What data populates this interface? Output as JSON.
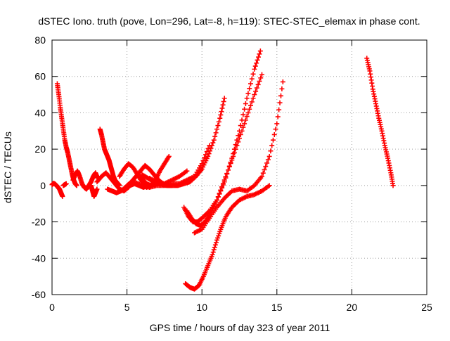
{
  "chart_data": {
    "type": "scatter",
    "title": "dSTEC Iono. truth (pove, Lon=296, Lat=-8, h=119): STEC-STEC_elemax in phase cont.",
    "xlabel": "GPS time / hours of day 323 of year 2011",
    "ylabel": "dSTEC  / TECUs",
    "xlim": [
      0,
      25
    ],
    "ylim": [
      -60,
      80
    ],
    "x_ticks": [
      0,
      5,
      10,
      15,
      20,
      25
    ],
    "y_ticks": [
      -60,
      -40,
      -20,
      0,
      20,
      40,
      60,
      80
    ],
    "grid": true,
    "marker": "+",
    "color": "#ff0000",
    "series": [
      {
        "x": [
          0.0,
          0.1,
          0.2,
          0.3,
          0.4,
          0.5,
          0.6,
          0.7
        ],
        "y": [
          0.5,
          1.2,
          0.8,
          0.0,
          -1.0,
          -2.0,
          -4.0,
          -6.0
        ]
      },
      {
        "x": [
          0.75,
          0.85,
          0.95
        ],
        "y": [
          0.0,
          0.5,
          1.0
        ]
      },
      {
        "x": [
          0.35,
          0.45,
          0.55,
          0.65,
          0.75,
          0.85,
          0.95,
          1.05,
          1.15,
          1.25,
          1.35,
          1.45,
          1.55,
          1.65
        ],
        "y": [
          56,
          50,
          43,
          37,
          31,
          25,
          21,
          18,
          14,
          10,
          6,
          3,
          1,
          0
        ]
      },
      {
        "x": [
          1.4,
          1.55,
          1.7,
          1.85,
          2.0,
          2.15,
          2.3,
          2.45,
          2.6,
          2.75,
          2.9,
          3.05
        ],
        "y": [
          3,
          6,
          8,
          5,
          1,
          -1,
          -2,
          0,
          2,
          5,
          7,
          4
        ]
      },
      {
        "x": [
          2.6,
          2.7,
          2.8,
          2.9,
          3.0
        ],
        "y": [
          0,
          -3,
          -6,
          -4,
          -2
        ]
      },
      {
        "x": [
          3.2,
          3.3,
          3.4,
          3.5,
          3.6,
          3.7,
          3.8,
          3.9,
          4.0,
          4.1,
          4.2,
          4.3,
          4.4,
          4.5
        ],
        "y": [
          31,
          28,
          24,
          20,
          18,
          16,
          14,
          11,
          8,
          5,
          3,
          2,
          1,
          0
        ]
      },
      {
        "x": [
          3.0,
          3.3,
          3.6,
          3.9,
          4.2,
          4.5,
          4.8,
          5.1,
          5.4,
          5.7,
          6.0,
          6.3,
          6.6,
          7.0
        ],
        "y": [
          2,
          5,
          7,
          4,
          1,
          -2,
          -3,
          -1,
          3,
          6,
          4,
          1,
          0,
          1
        ]
      },
      {
        "x": [
          4.5,
          4.8,
          5.1,
          5.4,
          5.7,
          6.0,
          6.3,
          6.6,
          6.9,
          7.2,
          7.5,
          7.8
        ],
        "y": [
          5,
          9,
          12,
          10,
          6,
          2,
          -1,
          0,
          3,
          8,
          12,
          16
        ]
      },
      {
        "x": [
          5.0,
          5.3,
          5.6,
          5.9,
          6.2,
          6.5,
          6.8,
          7.1,
          7.4,
          7.7,
          8.0
        ],
        "y": [
          0,
          2,
          5,
          8,
          11,
          9,
          6,
          3,
          1,
          0,
          0
        ]
      },
      {
        "x": [
          3.7,
          4.0,
          4.3,
          4.6,
          4.9,
          5.2,
          5.5,
          5.8,
          6.1,
          6.4
        ],
        "y": [
          -2,
          -3,
          -4,
          -3,
          -1,
          0,
          1,
          0,
          -1,
          0
        ]
      },
      {
        "x": [
          6.0,
          6.4,
          6.8,
          7.2,
          7.6,
          8.0,
          8.4,
          8.8,
          9.2,
          9.6,
          10.0,
          10.4,
          10.8,
          11.2,
          11.5
        ],
        "y": [
          6,
          4,
          2,
          1,
          0,
          0,
          0,
          1,
          2,
          5,
          9,
          16,
          25,
          37,
          48
        ]
      },
      {
        "x": [
          5.5,
          6.0,
          6.5,
          7.0,
          7.5,
          8.0,
          8.5,
          9.0,
          9.5,
          10.0,
          10.5
        ],
        "y": [
          2,
          0,
          -1,
          0,
          0,
          1,
          1,
          3,
          5,
          12,
          22
        ]
      },
      {
        "x": [
          6.5,
          7.0,
          7.5,
          8.0,
          8.5,
          9.0
        ],
        "y": [
          4,
          2,
          1,
          3,
          5,
          8
        ]
      },
      {
        "x": [
          8.8,
          9.1,
          9.4,
          9.7,
          10.0,
          10.5,
          11.0,
          11.5,
          12.0,
          12.5,
          13.0,
          13.5,
          13.9
        ],
        "y": [
          -12,
          -17,
          -20,
          -20,
          -18,
          -14,
          -8,
          2,
          15,
          30,
          48,
          64,
          74
        ]
      },
      {
        "x": [
          9.0,
          9.3,
          9.6,
          9.9,
          10.2,
          10.6,
          11.0,
          11.5,
          12.0,
          12.5,
          13.0,
          13.5,
          14.0
        ],
        "y": [
          -14,
          -18,
          -21,
          -22,
          -20,
          -15,
          -8,
          3,
          14,
          26,
          38,
          50,
          61
        ]
      },
      {
        "x": [
          9.5,
          10.0,
          10.5,
          11.0,
          11.5,
          12.0,
          12.5,
          13.0,
          13.5,
          14.0,
          14.5,
          15.0,
          15.4
        ],
        "y": [
          -26,
          -24,
          -18,
          -12,
          -7,
          -3,
          -2,
          -3,
          0,
          5,
          16,
          34,
          57
        ]
      },
      {
        "x": [
          8.9,
          9.2,
          9.5,
          9.8,
          10.1,
          10.4,
          10.7,
          11.0,
          11.3,
          11.6,
          12.0,
          12.5,
          13.0,
          13.5,
          14.0,
          14.5
        ],
        "y": [
          -54,
          -56,
          -57,
          -55,
          -50,
          -44,
          -38,
          -30,
          -23,
          -17,
          -12,
          -8,
          -6,
          -5,
          -3,
          0
        ]
      },
      {
        "x": [
          21.0,
          21.2,
          21.4,
          21.6,
          21.8,
          22.0,
          22.2,
          22.4,
          22.6,
          22.75
        ],
        "y": [
          70,
          63,
          53,
          45,
          37,
          30,
          22,
          15,
          7,
          0
        ]
      }
    ]
  }
}
